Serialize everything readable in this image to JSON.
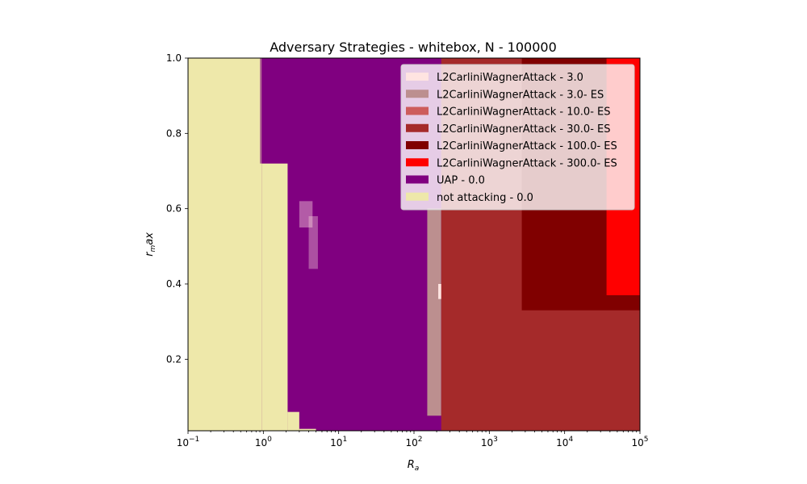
{
  "chart_data": {
    "type": "heatmap",
    "title": "Adversary Strategies - whitebox, N - 100000",
    "xlabel_base": "R",
    "xlabel_sub": "a",
    "ylabel_base": "r",
    "ylabel_sub": "m",
    "ylabel_rest": "ax",
    "xscale": "log",
    "xlim": [
      0.1,
      100000
    ],
    "ylim": [
      0.01,
      1.0
    ],
    "xticks": [
      {
        "value": 0.1,
        "base": "10",
        "exp": "−1"
      },
      {
        "value": 1,
        "base": "10",
        "exp": "0"
      },
      {
        "value": 10,
        "base": "10",
        "exp": "1"
      },
      {
        "value": 100,
        "base": "10",
        "exp": "2"
      },
      {
        "value": 1000,
        "base": "10",
        "exp": "3"
      },
      {
        "value": 10000,
        "base": "10",
        "exp": "4"
      },
      {
        "value": 100000,
        "base": "10",
        "exp": "5"
      }
    ],
    "yticks": [
      {
        "value": 0.2,
        "label": "0.2"
      },
      {
        "value": 0.4,
        "label": "0.4"
      },
      {
        "value": 0.6,
        "label": "0.6"
      },
      {
        "value": 0.8,
        "label": "0.8"
      },
      {
        "value": 1.0,
        "label": "1.0"
      }
    ],
    "legend_position": "upper-right",
    "series": [
      {
        "name": "L2CarliniWagnerAttack - 3.0",
        "color": "#ffe4e1"
      },
      {
        "name": "L2CarliniWagnerAttack - 3.0- ES",
        "color": "#bc8f8f"
      },
      {
        "name": "L2CarliniWagnerAttack - 10.0- ES",
        "color": "#cd5c5c"
      },
      {
        "name": "L2CarliniWagnerAttack - 30.0- ES",
        "color": "#a52a2a"
      },
      {
        "name": "L2CarliniWagnerAttack - 100.0- ES",
        "color": "#800000"
      },
      {
        "name": "L2CarliniWagnerAttack - 300.0- ES",
        "color": "#ff0000"
      },
      {
        "name": "UAP - 0.0",
        "color": "#800080"
      },
      {
        "name": "not attacking - 0.0",
        "color": "#eee8aa"
      }
    ],
    "regions": [
      {
        "series": 6,
        "x": [
          0.1,
          100000
        ],
        "y": [
          0.01,
          1.0
        ]
      },
      {
        "series": 7,
        "x": [
          0.1,
          0.95
        ],
        "y": [
          0.01,
          1.0
        ]
      },
      {
        "series": 7,
        "x": [
          0.95,
          2.1
        ],
        "y": [
          0.01,
          0.72
        ]
      },
      {
        "series": 7,
        "x": [
          2.1,
          3.0
        ],
        "y": [
          0.01,
          0.06
        ]
      },
      {
        "series": 7,
        "x": [
          3.0,
          5.0
        ],
        "y": [
          0.01,
          0.015
        ]
      },
      {
        "series": 6,
        "x": [
          0.9,
          3.0
        ],
        "y": [
          0.72,
          1.0
        ],
        "alpha": 0.55
      },
      {
        "series": 0,
        "x": [
          3.0,
          4.5
        ],
        "y": [
          0.55,
          0.62
        ],
        "alpha": 0.4
      },
      {
        "series": 0,
        "x": [
          4.0,
          5.3
        ],
        "y": [
          0.44,
          0.58
        ],
        "alpha": 0.35
      },
      {
        "series": 1,
        "x": [
          150,
          230
        ],
        "y": [
          0.05,
          0.6
        ]
      },
      {
        "series": 0,
        "x": [
          210,
          240
        ],
        "y": [
          0.36,
          0.4
        ]
      },
      {
        "series": 3,
        "x": [
          230,
          100000
        ],
        "y": [
          0.01,
          1.0
        ]
      },
      {
        "series": 4,
        "x": [
          2700,
          100000
        ],
        "y": [
          0.33,
          1.0
        ]
      },
      {
        "series": 5,
        "x": [
          36000,
          100000
        ],
        "y": [
          0.37,
          1.0
        ]
      }
    ]
  }
}
